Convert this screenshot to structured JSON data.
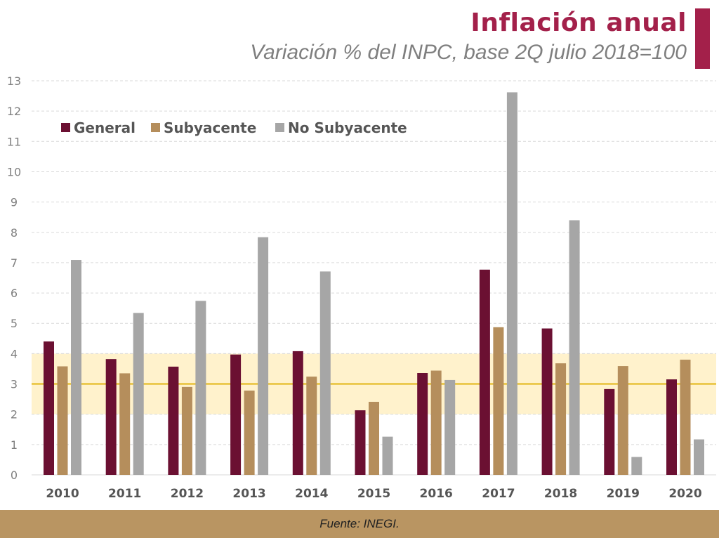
{
  "header": {
    "title": "Inflación anual",
    "subtitle": "Variación % del INPC, base 2Q julio 2018=100"
  },
  "footer": {
    "source": "Fuente: INEGI."
  },
  "colors": {
    "title": "#A3204A",
    "general": "#6B1032",
    "subyacente": "#B58E5C",
    "no_subyacente": "#A6A6A6",
    "target_band": "#FFF2CC",
    "target_line": "#E8C23A",
    "footer": "#B99562"
  },
  "chart_data": {
    "type": "bar",
    "title": "Inflación anual",
    "subtitle": "Variación % del INPC, base 2Q julio 2018=100",
    "xlabel": "",
    "ylabel": "",
    "categories": [
      "2010",
      "2011",
      "2012",
      "2013",
      "2014",
      "2015",
      "2016",
      "2017",
      "2018",
      "2019",
      "2020"
    ],
    "series": [
      {
        "name": "General",
        "values": [
          4.4,
          3.82,
          3.57,
          3.97,
          4.08,
          2.13,
          3.36,
          6.77,
          4.83,
          2.83,
          3.15
        ]
      },
      {
        "name": "Subyacente",
        "values": [
          3.58,
          3.35,
          2.9,
          2.78,
          3.24,
          2.41,
          3.44,
          4.87,
          3.68,
          3.59,
          3.8
        ]
      },
      {
        "name": "No Subyacente",
        "values": [
          7.09,
          5.34,
          5.74,
          7.84,
          6.71,
          1.26,
          3.13,
          12.62,
          8.4,
          0.59,
          1.17
        ]
      }
    ],
    "ylim": [
      0,
      13
    ],
    "yticks": [
      0,
      1,
      2,
      3,
      4,
      5,
      6,
      7,
      8,
      9,
      10,
      11,
      12,
      13
    ],
    "grid": true,
    "legend": "top-left",
    "target": {
      "line": 3,
      "band": [
        2,
        4
      ]
    }
  }
}
